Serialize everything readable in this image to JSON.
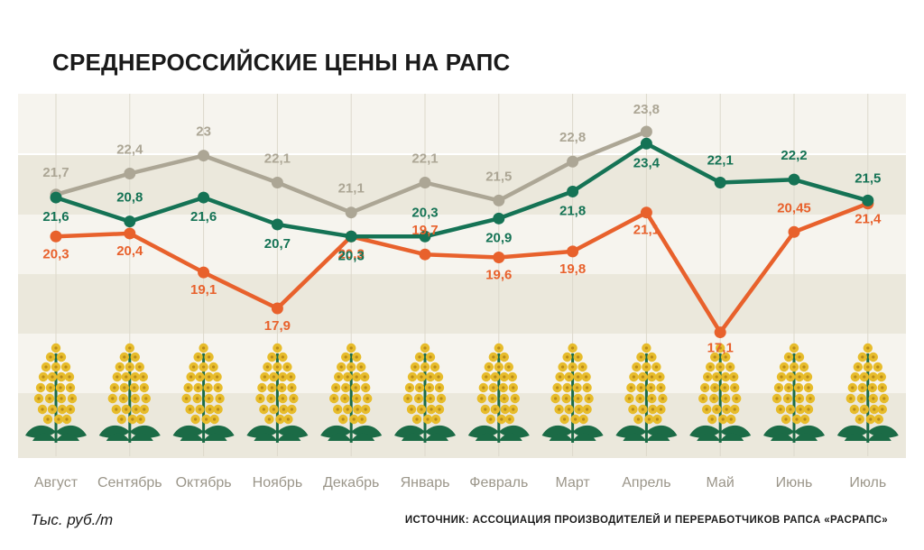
{
  "title": "СРЕДНЕРОССИЙСКИЕ ЦЕНЫ НА РАПС",
  "unit_label": "Тыс. руб./т",
  "source": "ИСТОЧНИК: АССОЦИАЦИЯ ПРОИЗВОДИТЕЛЕЙ И ПЕРЕРАБОТЧИКОВ РАПСА «РАСРАПС»",
  "colors": {
    "gray_series": "#aca695",
    "green_series": "#157355",
    "orange_series": "#e8612c",
    "band_light": "#f6f4ee",
    "band_dark": "#ebe8dc",
    "flower_yellow": "#e7bc2b",
    "stem_green": "#1b6b46",
    "month_text": "#9b968a"
  },
  "chart_data": {
    "type": "line",
    "categories": [
      "Август",
      "Сентябрь",
      "Октябрь",
      "Ноябрь",
      "Декабрь",
      "Январь",
      "Февраль",
      "Март",
      "Апрель",
      "Май",
      "Июнь",
      "Июль"
    ],
    "series": [
      {
        "key": "gray",
        "values": [
          21.7,
          22.4,
          23,
          22.1,
          21.1,
          22.1,
          21.5,
          22.8,
          23.8,
          null,
          null,
          null
        ],
        "labels": [
          "21,7",
          "22,4",
          "23",
          "22,1",
          "21,1",
          "22,1",
          "21,5",
          "22,8",
          "23,8",
          null,
          null,
          null
        ]
      },
      {
        "key": "green",
        "values": [
          21.6,
          20.8,
          21.6,
          20.7,
          20.3,
          20.3,
          20.9,
          21.8,
          23.4,
          22.1,
          22.2,
          21.5
        ],
        "labels": [
          "21,6",
          "20,8",
          "21,6",
          "20,7",
          "20,3",
          "20,3",
          "20,9",
          "21,8",
          "23,4",
          "22,1",
          "22,2",
          "21,5"
        ]
      },
      {
        "key": "orange",
        "values": [
          20.3,
          20.4,
          19.1,
          17.9,
          20.3,
          19.7,
          19.6,
          19.8,
          21.1,
          17.1,
          20.45,
          21.4
        ],
        "labels": [
          "20,3",
          "20,4",
          "19,1",
          "17,9",
          "20,3",
          "19,7",
          "19,6",
          "19,8",
          "21,1",
          "17,1",
          "20,45",
          "21,4"
        ]
      }
    ],
    "legend": "none",
    "grid": "horizontal bands"
  }
}
